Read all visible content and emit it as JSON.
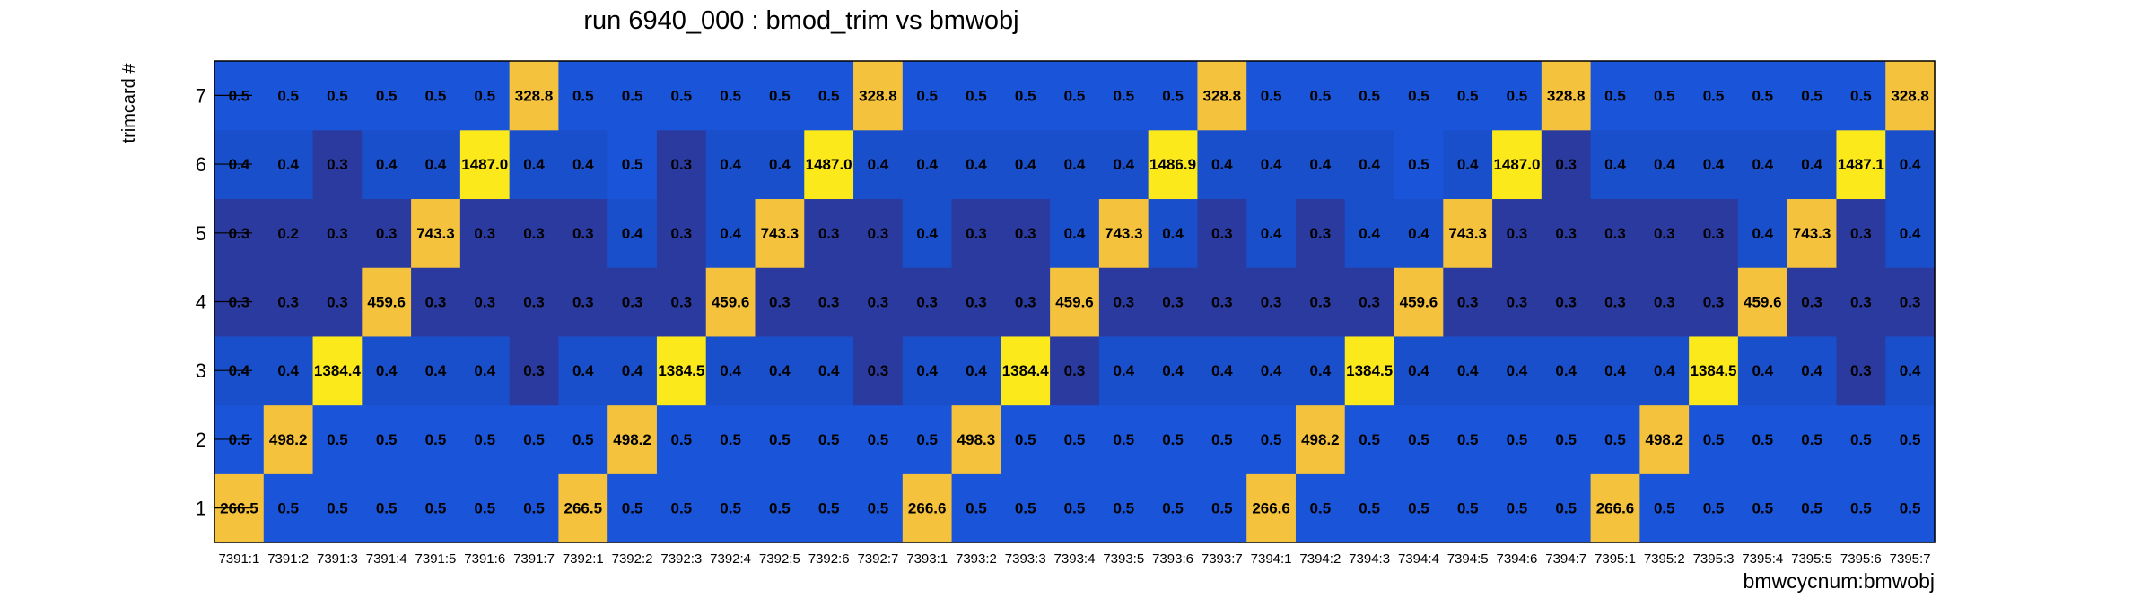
{
  "chart_data": {
    "type": "heatmap",
    "title": "run 6940_000 : bmod_trim vs bmwobj",
    "xlabel": "bmwcycnum:bmwobj",
    "ylabel": "trimcard #",
    "x_categories": [
      "7391:1",
      "7391:2",
      "7391:3",
      "7391:4",
      "7391:5",
      "7391:6",
      "7391:7",
      "7392:1",
      "7392:2",
      "7392:3",
      "7392:4",
      "7392:5",
      "7392:6",
      "7392:7",
      "7393:1",
      "7393:2",
      "7393:3",
      "7393:4",
      "7393:5",
      "7393:6",
      "7393:7",
      "7394:1",
      "7394:2",
      "7394:3",
      "7394:4",
      "7394:5",
      "7394:6",
      "7394:7",
      "7395:1",
      "7395:2",
      "7395:3",
      "7395:4",
      "7395:5",
      "7395:6",
      "7395:7"
    ],
    "y_categories": [
      "1",
      "2",
      "3",
      "4",
      "5",
      "6",
      "7"
    ],
    "values_by_row": {
      "7": [
        "0.5",
        "0.5",
        "0.5",
        "0.5",
        "0.5",
        "0.5",
        "328.8",
        "0.5",
        "0.5",
        "0.5",
        "0.5",
        "0.5",
        "0.5",
        "328.8",
        "0.5",
        "0.5",
        "0.5",
        "0.5",
        "0.5",
        "0.5",
        "328.8",
        "0.5",
        "0.5",
        "0.5",
        "0.5",
        "0.5",
        "0.5",
        "328.8",
        "0.5",
        "0.5",
        "0.5",
        "0.5",
        "0.5",
        "0.5",
        "328.8"
      ],
      "6": [
        "0.4",
        "0.4",
        "0.3",
        "0.4",
        "0.4",
        "1487.0",
        "0.4",
        "0.4",
        "0.5",
        "0.3",
        "0.4",
        "0.4",
        "1487.0",
        "0.4",
        "0.4",
        "0.4",
        "0.4",
        "0.4",
        "0.4",
        "1486.9",
        "0.4",
        "0.4",
        "0.4",
        "0.4",
        "0.5",
        "0.4",
        "1487.0",
        "0.3",
        "0.4",
        "0.4",
        "0.4",
        "0.4",
        "0.4",
        "1487.1",
        "0.4"
      ],
      "5": [
        "0.3",
        "0.2",
        "0.3",
        "0.3",
        "743.3",
        "0.3",
        "0.3",
        "0.3",
        "0.4",
        "0.3",
        "0.4",
        "743.3",
        "0.3",
        "0.3",
        "0.4",
        "0.3",
        "0.3",
        "0.4",
        "743.3",
        "0.4",
        "0.3",
        "0.4",
        "0.3",
        "0.4",
        "0.4",
        "743.3",
        "0.3",
        "0.3",
        "0.3",
        "0.3",
        "0.3",
        "0.4",
        "743.3",
        "0.3",
        "0.4"
      ],
      "4": [
        "0.3",
        "0.3",
        "0.3",
        "459.6",
        "0.3",
        "0.3",
        "0.3",
        "0.3",
        "0.3",
        "0.3",
        "459.6",
        "0.3",
        "0.3",
        "0.3",
        "0.3",
        "0.3",
        "0.3",
        "459.6",
        "0.3",
        "0.3",
        "0.3",
        "0.3",
        "0.3",
        "0.3",
        "459.6",
        "0.3",
        "0.3",
        "0.3",
        "0.3",
        "0.3",
        "0.3",
        "459.6",
        "0.3",
        "0.3",
        "0.3"
      ],
      "3": [
        "0.4",
        "0.4",
        "1384.4",
        "0.4",
        "0.4",
        "0.4",
        "0.3",
        "0.4",
        "0.4",
        "1384.5",
        "0.4",
        "0.4",
        "0.4",
        "0.3",
        "0.4",
        "0.4",
        "1384.4",
        "0.3",
        "0.4",
        "0.4",
        "0.4",
        "0.4",
        "0.4",
        "1384.5",
        "0.4",
        "0.4",
        "0.4",
        "0.4",
        "0.4",
        "0.4",
        "1384.5",
        "0.4",
        "0.4",
        "0.3",
        "0.4"
      ],
      "2": [
        "0.5",
        "498.2",
        "0.5",
        "0.5",
        "0.5",
        "0.5",
        "0.5",
        "0.5",
        "498.2",
        "0.5",
        "0.5",
        "0.5",
        "0.5",
        "0.5",
        "0.5",
        "498.3",
        "0.5",
        "0.5",
        "0.5",
        "0.5",
        "0.5",
        "0.5",
        "498.2",
        "0.5",
        "0.5",
        "0.5",
        "0.5",
        "0.5",
        "0.5",
        "498.2",
        "0.5",
        "0.5",
        "0.5",
        "0.5",
        "0.5"
      ],
      "1": [
        "266.5",
        "0.5",
        "0.5",
        "0.5",
        "0.5",
        "0.5",
        "0.5",
        "266.5",
        "0.5",
        "0.5",
        "0.5",
        "0.5",
        "0.5",
        "0.5",
        "266.6",
        "0.5",
        "0.5",
        "0.5",
        "0.5",
        "0.5",
        "0.5",
        "266.6",
        "0.5",
        "0.5",
        "0.5",
        "0.5",
        "0.5",
        "0.5",
        "266.6",
        "0.5",
        "0.5",
        "0.5",
        "0.5",
        "0.5",
        "0.5"
      ]
    },
    "colors": {
      "low_0.2_0.3": "#2b3a9e",
      "mid_0.4": "#1a4fcc",
      "mid_0.5": "#1a54d8",
      "high_orange": "#f4c23c",
      "high_yellow": "#fbe91c",
      "frame": "#000000"
    },
    "legend": "none",
    "grid": false
  }
}
